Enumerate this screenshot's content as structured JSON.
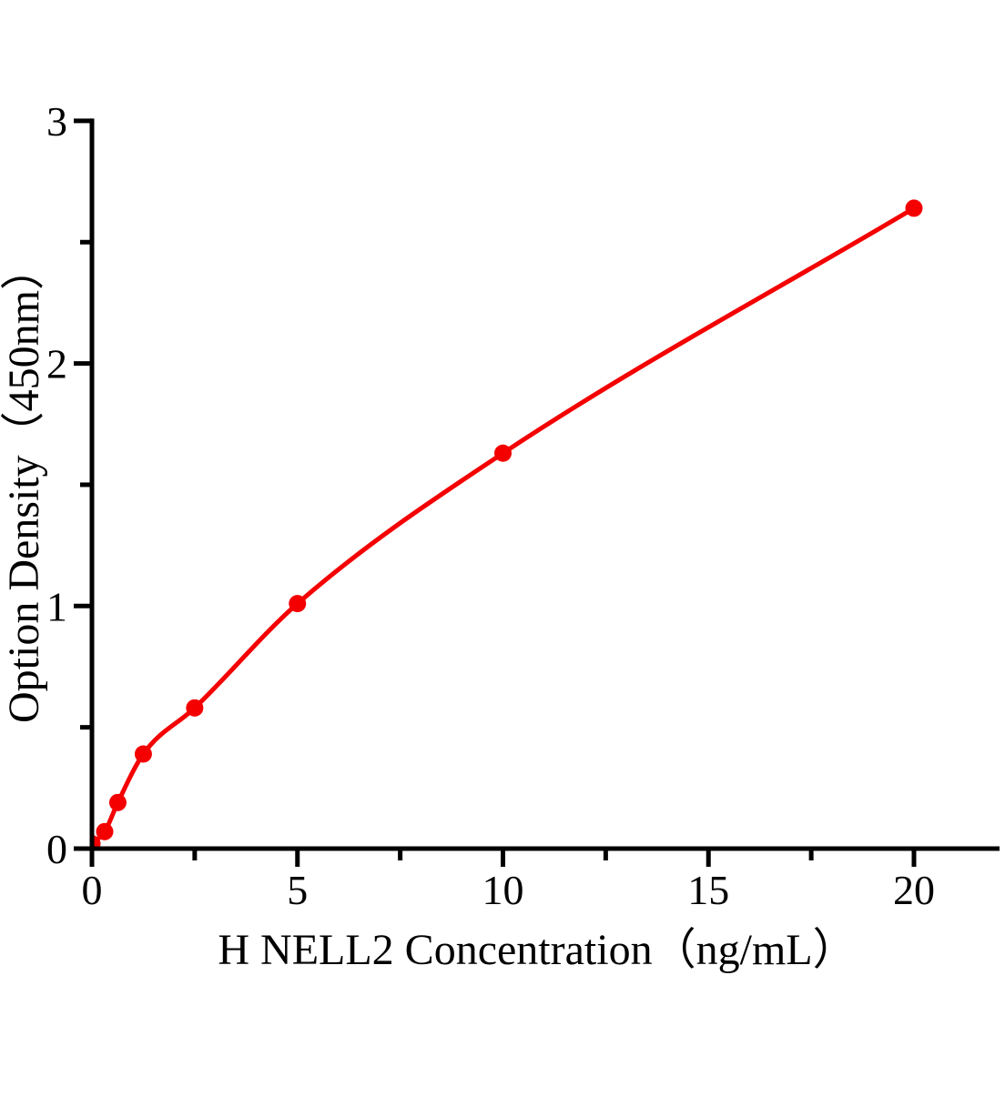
{
  "chart_data": {
    "type": "line",
    "title": "",
    "xlabel": "H NELL2 Concentration（ng/mL）",
    "ylabel": "Option Density（450nm）",
    "x": [
      0,
      0.31,
      0.63,
      1.25,
      2.5,
      5,
      10,
      20
    ],
    "y": [
      0.02,
      0.07,
      0.19,
      0.39,
      0.58,
      1.01,
      1.63,
      2.64
    ],
    "xlim": [
      0,
      22.1
    ],
    "ylim": [
      0,
      3
    ],
    "x_major_ticks": [
      0,
      5,
      10,
      15,
      20
    ],
    "x_minor_ticks": [
      2.5,
      7.5,
      12.5,
      17.5
    ],
    "y_major_ticks": [
      0,
      1,
      2,
      3
    ],
    "y_minor_ticks": [
      0.5,
      1.5,
      2.5
    ],
    "grid": false,
    "legend": "none",
    "colors": {
      "curve": "#f40000",
      "marker": "#f40000",
      "axis": "#000000",
      "background": "#ffffff"
    }
  }
}
